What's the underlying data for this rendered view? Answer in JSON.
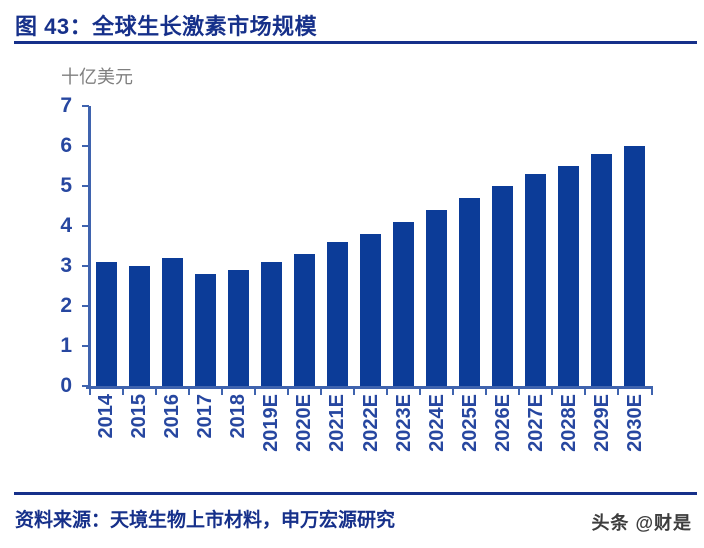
{
  "figure": {
    "title": "图 43：全球生长激素市场规模",
    "unit_label": "十亿美元",
    "source": "资料来源：天境生物上市材料，申万宏源研究",
    "watermark": "头条 @财是"
  },
  "colors": {
    "title_navy": "#16308a",
    "bar_blue": "#0c3c98",
    "axis_label_blue": "#2747a0",
    "axis_line_blue": "#3f63ae",
    "unit_gray": "#7f7f7f",
    "watermark_gray": "#3d3d3d"
  },
  "chart_data": {
    "type": "bar",
    "title": "全球生长激素市场规模",
    "ylabel": "十亿美元",
    "xlabel": "",
    "categories": [
      "2014",
      "2015",
      "2016",
      "2017",
      "2018",
      "2019E",
      "2020E",
      "2021E",
      "2022E",
      "2023E",
      "2024E",
      "2025E",
      "2026E",
      "2027E",
      "2028E",
      "2029E",
      "2030E"
    ],
    "values": [
      3.1,
      3.0,
      3.2,
      2.8,
      2.9,
      3.1,
      3.3,
      3.6,
      3.8,
      4.1,
      4.4,
      4.7,
      5.0,
      5.3,
      5.5,
      5.8,
      6.0
    ],
    "ylim": [
      0,
      7
    ],
    "yticks": [
      0,
      1,
      2,
      3,
      4,
      5,
      6,
      7
    ],
    "grid": false,
    "legend_position": "none"
  }
}
